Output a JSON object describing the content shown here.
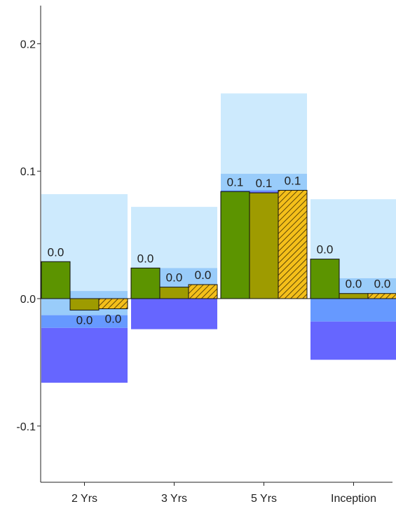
{
  "chart_data": {
    "type": "bar",
    "categories": [
      "2 Yrs",
      "3 Yrs",
      "5 Yrs",
      "Inception"
    ],
    "series": [
      {
        "values": [
          0.029,
          0.024,
          0.084,
          0.031
        ],
        "labels": [
          "0.0",
          "0.0",
          "0.1",
          "0.0"
        ],
        "color": "#5c9400",
        "pattern": "solid"
      },
      {
        "values": [
          -0.009,
          0.009,
          0.083,
          0.004
        ],
        "labels": [
          "0.0",
          "0.0",
          "0.1",
          "0.0"
        ],
        "color": "#9e9b00",
        "pattern": "solid"
      },
      {
        "values": [
          -0.008,
          0.011,
          0.085,
          0.004
        ],
        "labels": [
          "0.0",
          "0.0",
          "0.1",
          "0.0"
        ],
        "color": "#f4bf1a",
        "pattern": "hatched"
      }
    ],
    "ranges": [
      {
        "color": "#cdeafd",
        "spans": [
          [
            0.006,
            0.082
          ],
          [
            0.024,
            0.072
          ],
          [
            0.098,
            0.161
          ],
          [
            0.016,
            0.078
          ]
        ]
      },
      {
        "color": "#99ccfa",
        "spans": [
          [
            -0.013,
            0.006
          ],
          [
            0.0,
            0.024
          ],
          [
            0.085,
            0.098
          ],
          [
            0.004,
            0.016
          ]
        ]
      },
      {
        "color": "#6699ff",
        "spans": [
          [
            -0.023,
            -0.013
          ],
          [
            0.0,
            0.0
          ],
          [
            0.084,
            0.085
          ],
          [
            -0.018,
            0.0
          ]
        ]
      },
      {
        "color": "#6666ff",
        "spans": [
          [
            -0.066,
            -0.023
          ],
          [
            -0.024,
            0.0
          ],
          [
            0.083,
            0.084
          ],
          [
            -0.048,
            -0.018
          ]
        ]
      }
    ],
    "yticks": [
      {
        "value": 0.2,
        "label": "0.2"
      },
      {
        "value": 0.1,
        "label": "0.1"
      },
      {
        "value": 0.0,
        "label": "0.0"
      },
      {
        "value": -0.1,
        "label": "-0.1"
      }
    ],
    "ylim": [
      -0.14,
      0.225
    ],
    "title": "",
    "xlabel": "",
    "ylabel": "",
    "legend": "none",
    "grid": false
  }
}
